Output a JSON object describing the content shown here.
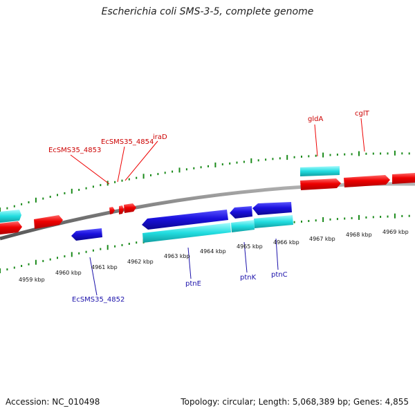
{
  "title": "Escherichia coli SMS-3-5, complete genome",
  "footer": {
    "accession": "Accession: NC_010498",
    "stats": "Topology: circular; Length: 5,068,389 bp; Genes: 4,855"
  },
  "colors": {
    "forward_cds": "#ee0000",
    "reverse_cds": "#1a10dd",
    "forward_label": "#cc0000",
    "reverse_label": "#1a10aa",
    "forward_rna": "#22dde0",
    "reverse_rna": "#22c4c8",
    "backbone": "#7a7a7a",
    "tick": "#1a8a1a",
    "axis_label": "#111111"
  },
  "axis": {
    "unit": "kbp",
    "labels": [
      "4959 kbp",
      "4960 kbp",
      "4961 kbp",
      "4962 kbp",
      "4963 kbp",
      "4964 kbp",
      "4965 kbp",
      "4966 kbp",
      "4967 kbp",
      "4968 kbp",
      "4969 kbp"
    ]
  },
  "genes": {
    "forward": [
      {
        "label": "EcSMS35_4853"
      },
      {
        "label": "EcSMS35_4854"
      },
      {
        "label": "iraD"
      },
      {
        "label": "gldA"
      },
      {
        "label": "cglT"
      }
    ],
    "reverse": [
      {
        "label": "EcSMS35_4852"
      },
      {
        "label": "ptnE"
      },
      {
        "label": "ptnK"
      },
      {
        "label": "ptnC"
      }
    ]
  }
}
